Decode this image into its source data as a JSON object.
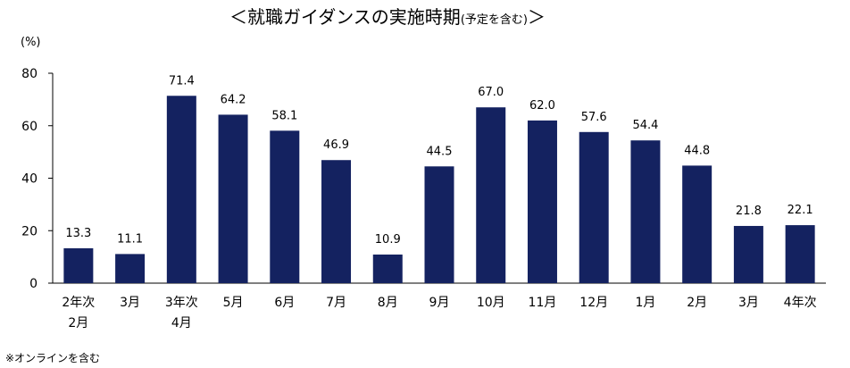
{
  "chart_data": {
    "type": "bar",
    "title": "＜就職ガイダンスの実施時期",
    "title_note": "(予定を含む)",
    "title_close": "＞",
    "y_unit": "(%)",
    "ylim": [
      0,
      80
    ],
    "yticks": [
      0,
      20,
      40,
      60,
      80
    ],
    "grid": false,
    "bar_color": "#142260",
    "categories": [
      [
        "2年次",
        "2月"
      ],
      [
        "3月"
      ],
      [
        "3年次",
        "4月"
      ],
      [
        "5月"
      ],
      [
        "6月"
      ],
      [
        "7月"
      ],
      [
        "8月"
      ],
      [
        "9月"
      ],
      [
        "10月"
      ],
      [
        "11月"
      ],
      [
        "12月"
      ],
      [
        "1月"
      ],
      [
        "2月"
      ],
      [
        "3月"
      ],
      [
        "4年次"
      ]
    ],
    "values": [
      13.3,
      11.1,
      71.4,
      64.2,
      58.1,
      46.9,
      10.9,
      44.5,
      67.0,
      62.0,
      57.6,
      54.4,
      44.8,
      21.8,
      22.1
    ],
    "value_labels": [
      "13.3",
      "11.1",
      "71.4",
      "64.2",
      "58.1",
      "46.9",
      "10.9",
      "44.5",
      "67.0",
      "62.0",
      "57.6",
      "54.4",
      "44.8",
      "21.8",
      "22.1"
    ],
    "footnote": "※オンラインを含む"
  }
}
